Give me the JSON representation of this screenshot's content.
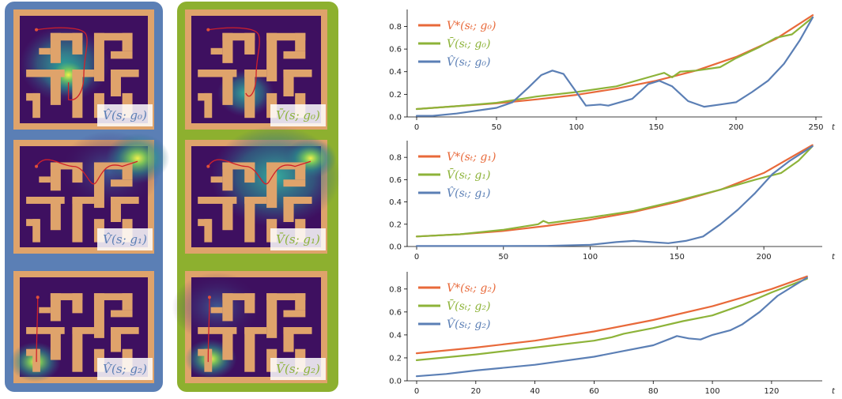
{
  "colors": {
    "vstar": "#e8693a",
    "vbar": "#8db339",
    "vhat": "#5b7fb5",
    "hat_panel": "#5b7fb5",
    "bar_panel": "#8db02f",
    "wall": "#dfa36b",
    "floor": "#3e1060",
    "path": "#d0202a"
  },
  "maze_panels": {
    "hat_labels": [
      "V̂(s; g₀)",
      "V̂(s; g₁)",
      "V̂(s; g₂)"
    ],
    "bar_labels": [
      "V̄(s; g₀)",
      "V̄(s; g₁)",
      "V̄(s; g₂)"
    ]
  },
  "chart_data": [
    {
      "type": "line",
      "xlabel": "t",
      "xlim": [
        0,
        250
      ],
      "ylim": [
        0,
        0.95
      ],
      "xticks": [
        0,
        50,
        100,
        150,
        200,
        250
      ],
      "yticks": [
        0.0,
        0.2,
        0.4,
        0.6,
        0.8
      ],
      "legend_position": "top-left",
      "series": [
        {
          "name": "V*(s_t; g_0)",
          "color": "#e8693a",
          "x": [
            0,
            25,
            50,
            75,
            100,
            125,
            150,
            175,
            200,
            225,
            248
          ],
          "y": [
            0.07,
            0.095,
            0.12,
            0.155,
            0.195,
            0.25,
            0.32,
            0.41,
            0.53,
            0.69,
            0.9
          ]
        },
        {
          "name": "V̄(s_t; g_0)",
          "color": "#8db339",
          "x": [
            0,
            25,
            50,
            75,
            100,
            125,
            150,
            155,
            160,
            165,
            175,
            190,
            200,
            215,
            225,
            235,
            248
          ],
          "y": [
            0.07,
            0.095,
            0.125,
            0.18,
            0.22,
            0.27,
            0.37,
            0.39,
            0.35,
            0.4,
            0.41,
            0.44,
            0.52,
            0.62,
            0.7,
            0.73,
            0.88
          ]
        },
        {
          "name": "V̂(s_t; g_0)",
          "color": "#5b7fb5",
          "x": [
            0,
            10,
            25,
            40,
            50,
            60,
            70,
            78,
            85,
            92,
            100,
            106,
            115,
            120,
            125,
            135,
            145,
            152,
            160,
            170,
            180,
            190,
            200,
            210,
            220,
            230,
            240,
            248
          ],
          "y": [
            0.01,
            0.01,
            0.03,
            0.06,
            0.08,
            0.13,
            0.26,
            0.37,
            0.41,
            0.38,
            0.22,
            0.1,
            0.11,
            0.1,
            0.12,
            0.16,
            0.29,
            0.32,
            0.27,
            0.14,
            0.09,
            0.11,
            0.13,
            0.22,
            0.32,
            0.47,
            0.68,
            0.88
          ]
        }
      ]
    },
    {
      "type": "line",
      "xlabel": "t",
      "xlim": [
        0,
        230
      ],
      "ylim": [
        0,
        0.95
      ],
      "xticks": [
        0,
        50,
        100,
        150,
        200
      ],
      "yticks": [
        0.0,
        0.2,
        0.4,
        0.6,
        0.8
      ],
      "legend_position": "top-left",
      "series": [
        {
          "name": "V*(s_t; g_1)",
          "color": "#e8693a",
          "x": [
            0,
            25,
            50,
            75,
            100,
            125,
            150,
            175,
            200,
            228
          ],
          "y": [
            0.09,
            0.11,
            0.14,
            0.185,
            0.24,
            0.31,
            0.4,
            0.51,
            0.66,
            0.91
          ]
        },
        {
          "name": "V̄(s_t; g_1)",
          "color": "#8db339",
          "x": [
            0,
            25,
            50,
            70,
            73,
            76,
            100,
            125,
            150,
            175,
            195,
            210,
            220,
            228
          ],
          "y": [
            0.09,
            0.11,
            0.15,
            0.2,
            0.23,
            0.21,
            0.26,
            0.32,
            0.41,
            0.51,
            0.6,
            0.66,
            0.77,
            0.9
          ]
        },
        {
          "name": "V̂(s_t; g_1)",
          "color": "#5b7fb5",
          "x": [
            0,
            25,
            50,
            75,
            100,
            115,
            125,
            135,
            145,
            155,
            165,
            175,
            185,
            195,
            205,
            215,
            228
          ],
          "y": [
            0.005,
            0.005,
            0.005,
            0.006,
            0.015,
            0.04,
            0.05,
            0.04,
            0.03,
            0.05,
            0.09,
            0.2,
            0.33,
            0.48,
            0.65,
            0.77,
            0.9
          ]
        }
      ]
    },
    {
      "type": "line",
      "xlabel": "t",
      "xlim": [
        0,
        135
      ],
      "ylim": [
        0,
        0.95
      ],
      "xticks": [
        0,
        20,
        40,
        60,
        80,
        100,
        120
      ],
      "yticks": [
        0.0,
        0.2,
        0.4,
        0.6,
        0.8
      ],
      "legend_position": "top-left",
      "series": [
        {
          "name": "V*(s_t; g_2)",
          "color": "#e8693a",
          "x": [
            0,
            20,
            40,
            60,
            80,
            100,
            120,
            132
          ],
          "y": [
            0.24,
            0.29,
            0.35,
            0.43,
            0.53,
            0.65,
            0.8,
            0.91
          ]
        },
        {
          "name": "V̄(s_t; g_2)",
          "color": "#8db339",
          "x": [
            0,
            20,
            40,
            60,
            66,
            70,
            80,
            90,
            100,
            110,
            120,
            132
          ],
          "y": [
            0.18,
            0.23,
            0.29,
            0.35,
            0.38,
            0.41,
            0.46,
            0.52,
            0.57,
            0.66,
            0.77,
            0.89
          ]
        },
        {
          "name": "V̂(s_t; g_2)",
          "color": "#5b7fb5",
          "x": [
            0,
            10,
            20,
            40,
            60,
            70,
            80,
            86,
            88,
            92,
            96,
            100,
            106,
            110,
            116,
            122,
            132
          ],
          "y": [
            0.04,
            0.06,
            0.09,
            0.14,
            0.21,
            0.26,
            0.31,
            0.37,
            0.39,
            0.37,
            0.36,
            0.4,
            0.44,
            0.49,
            0.6,
            0.74,
            0.9
          ]
        }
      ]
    }
  ],
  "legends": [
    [
      "V*(sₜ; g₀)",
      "V̄(sₜ; g₀)",
      "V̂(sₜ; g₀)"
    ],
    [
      "V*(sₜ; g₁)",
      "V̄(sₜ; g₁)",
      "V̂(sₜ; g₁)"
    ],
    [
      "V*(sₜ; g₂)",
      "V̄(sₜ; g₂)",
      "V̂(sₜ; g₂)"
    ]
  ]
}
